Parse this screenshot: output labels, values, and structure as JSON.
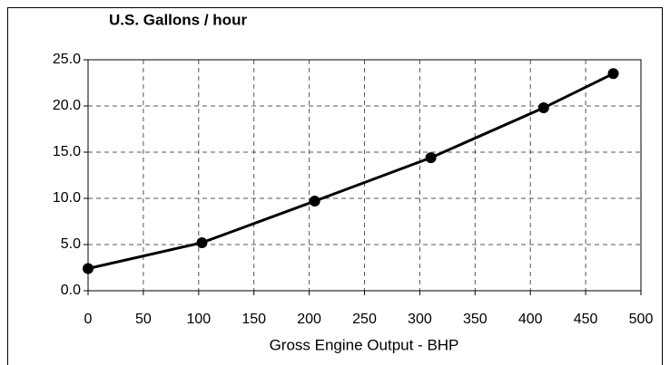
{
  "chart_data": {
    "type": "line",
    "title": "U.S. Gallons / hour",
    "x_label": "Gross Engine Output - BHP",
    "x": [
      0,
      103,
      205,
      310,
      412,
      475
    ],
    "series": [
      {
        "color": "#000000",
        "values": [
          2.4,
          5.2,
          9.7,
          14.4,
          19.8,
          23.5
        ]
      }
    ],
    "xlim": [
      0,
      500
    ],
    "xticks": [
      0,
      50,
      100,
      150,
      200,
      250,
      300,
      350,
      400,
      450,
      500
    ],
    "ylim": [
      0,
      25
    ],
    "yticks": [
      {
        "value": 0,
        "label": "0.0"
      },
      {
        "value": 5,
        "label": "5.0"
      },
      {
        "value": 10,
        "label": "10.0"
      },
      {
        "value": 15,
        "label": "15.0"
      },
      {
        "value": 20,
        "label": "20.0"
      },
      {
        "value": 25,
        "label": "25.0"
      }
    ],
    "grid": true
  }
}
